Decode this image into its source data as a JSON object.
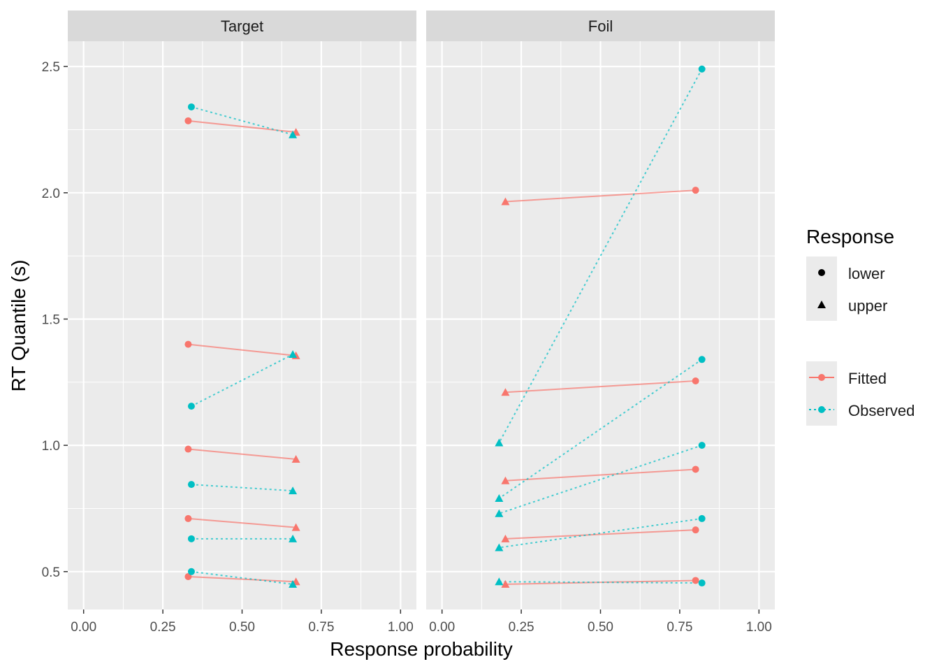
{
  "chart_data": {
    "type": "scatter",
    "xlabel": "Response probability",
    "ylabel": "RT Quantile (s)",
    "xlim": [
      -0.05,
      1.05
    ],
    "ylim": [
      0.35,
      2.6
    ],
    "x_ticks": [
      0,
      0.25,
      0.5,
      0.75,
      1
    ],
    "x_tick_labels": [
      "0.00",
      "0.25",
      "0.50",
      "0.75",
      "1.00"
    ],
    "y_ticks": [
      0.5,
      1.0,
      1.5,
      2.0,
      2.5
    ],
    "y_tick_labels": [
      "0.5",
      "1.0",
      "1.5",
      "2.0",
      "2.5"
    ],
    "grid": true,
    "legend_position": "right",
    "legend": {
      "shape_title": "Response",
      "shape_entries": [
        {
          "label": "lower",
          "shape": "circle"
        },
        {
          "label": "upper",
          "shape": "triangle"
        }
      ],
      "color_entries": [
        {
          "label": "Fitted",
          "color": "#F8766D",
          "linetype": "solid"
        },
        {
          "label": "Observed",
          "color": "#00BFC4",
          "linetype": "dotted"
        }
      ]
    },
    "panels": [
      {
        "name": "Target",
        "series": [
          {
            "name": "Fitted",
            "color": "#F8766D",
            "linetype": "solid",
            "lower": {
              "x": 0.33,
              "y": [
                0.48,
                0.71,
                0.985,
                1.4,
                2.285
              ]
            },
            "upper": {
              "x": 0.67,
              "y": [
                0.46,
                0.675,
                0.945,
                1.355,
                2.24
              ]
            }
          },
          {
            "name": "Observed",
            "color": "#00BFC4",
            "linetype": "dotted",
            "lower": {
              "x": 0.34,
              "y": [
                0.5,
                0.63,
                0.845,
                1.155,
                2.34
              ]
            },
            "upper": {
              "x": 0.66,
              "y": [
                0.45,
                0.63,
                0.82,
                1.36,
                2.23
              ]
            }
          }
        ]
      },
      {
        "name": "Foil",
        "series": [
          {
            "name": "Fitted",
            "color": "#F8766D",
            "linetype": "solid",
            "lower": {
              "x": 0.8,
              "y": [
                0.465,
                0.665,
                0.905,
                1.255,
                2.01
              ]
            },
            "upper": {
              "x": 0.2,
              "y": [
                0.45,
                0.63,
                0.86,
                1.21,
                1.965
              ]
            }
          },
          {
            "name": "Observed",
            "color": "#00BFC4",
            "linetype": "dotted",
            "lower": {
              "x": 0.82,
              "y": [
                0.455,
                0.71,
                1.0,
                1.34,
                2.49
              ]
            },
            "upper": {
              "x": 0.18,
              "y": [
                0.46,
                0.595,
                0.73,
                0.79,
                1.01
              ]
            }
          }
        ]
      }
    ]
  }
}
